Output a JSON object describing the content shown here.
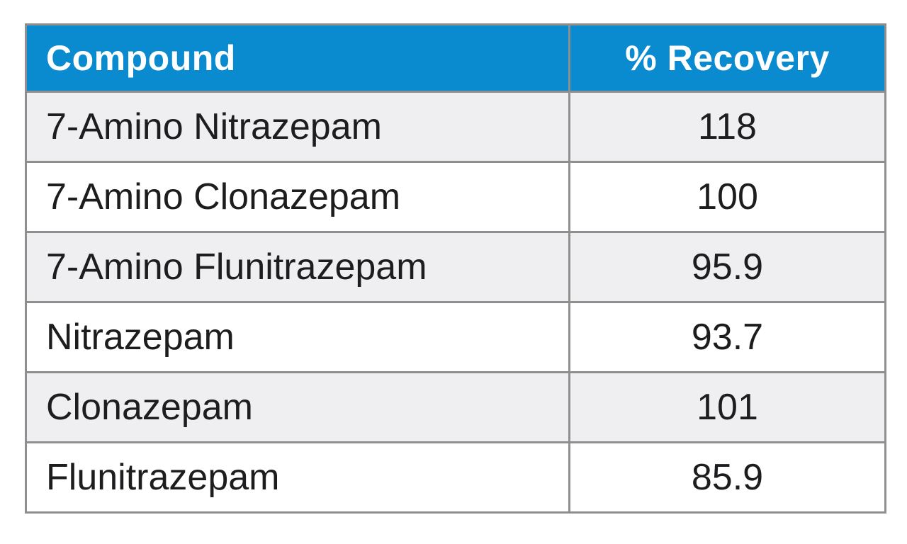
{
  "colors": {
    "header_bg": "#0a8bcf",
    "header_text": "#ffffff",
    "header_divider": "#e3f6fd",
    "row_odd_bg": "#efeff1",
    "row_even_bg": "#ffffff",
    "border": "#8f8f8f",
    "body_text": "#1d1d1f"
  },
  "chart_data": {
    "type": "table",
    "columns": [
      "Compound",
      "% Recovery"
    ],
    "rows": [
      [
        "7-Amino Nitrazepam",
        "118"
      ],
      [
        "7-Amino Clonazepam",
        "100"
      ],
      [
        "7-Amino Flunitrazepam",
        "95.9"
      ],
      [
        "Nitrazepam",
        "93.7"
      ],
      [
        "Clonazepam",
        "101"
      ],
      [
        "Flunitrazepam",
        "85.9"
      ]
    ]
  }
}
